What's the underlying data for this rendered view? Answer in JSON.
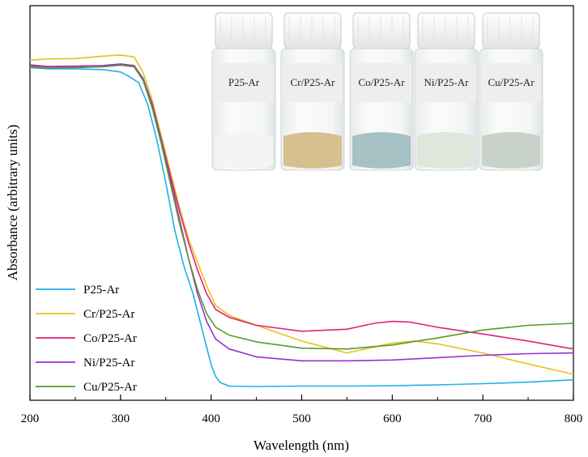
{
  "chart_data": {
    "type": "line",
    "xlabel": "Wavelength (nm)",
    "ylabel": "Absorbance (arbitrary units)",
    "xlim": [
      200,
      800
    ],
    "ylim": [
      0,
      1
    ],
    "xticks": [
      200,
      300,
      400,
      500,
      600,
      700,
      800
    ],
    "xtick_labels": [
      "200",
      "300",
      "400",
      "500",
      "600",
      "700",
      "800"
    ],
    "y_tick_labels_shown": false,
    "grid": false,
    "legend_position": "bottom-left",
    "series": [
      {
        "name": "P25-Ar",
        "color": "#1fb1e6",
        "x": [
          200,
          220,
          250,
          280,
          300,
          310,
          320,
          330,
          340,
          350,
          360,
          370,
          380,
          390,
          400,
          405,
          410,
          420,
          450,
          500,
          550,
          600,
          650,
          700,
          750,
          800
        ],
        "y": [
          0.843,
          0.84,
          0.84,
          0.838,
          0.832,
          0.82,
          0.805,
          0.75,
          0.66,
          0.55,
          0.43,
          0.34,
          0.27,
          0.18,
          0.09,
          0.06,
          0.045,
          0.036,
          0.035,
          0.036,
          0.036,
          0.037,
          0.039,
          0.042,
          0.046,
          0.052
        ]
      },
      {
        "name": "Cr/P25-Ar",
        "color": "#e6c21c",
        "x": [
          200,
          220,
          250,
          280,
          300,
          315,
          325,
          335,
          345,
          355,
          365,
          375,
          385,
          395,
          405,
          420,
          450,
          500,
          550,
          600,
          625,
          650,
          700,
          750,
          800
        ],
        "y": [
          0.862,
          0.865,
          0.866,
          0.872,
          0.875,
          0.87,
          0.83,
          0.76,
          0.67,
          0.58,
          0.49,
          0.41,
          0.35,
          0.29,
          0.24,
          0.215,
          0.19,
          0.15,
          0.12,
          0.145,
          0.15,
          0.143,
          0.12,
          0.092,
          0.066
        ]
      },
      {
        "name": "Co/P25-Ar",
        "color": "#e2217f",
        "x": [
          200,
          220,
          250,
          280,
          300,
          315,
          325,
          335,
          345,
          355,
          365,
          375,
          385,
          395,
          405,
          420,
          450,
          500,
          550,
          580,
          600,
          620,
          650,
          700,
          750,
          800
        ],
        "y": [
          0.85,
          0.846,
          0.847,
          0.848,
          0.852,
          0.848,
          0.815,
          0.75,
          0.66,
          0.57,
          0.48,
          0.4,
          0.33,
          0.27,
          0.23,
          0.21,
          0.19,
          0.175,
          0.18,
          0.195,
          0.2,
          0.198,
          0.185,
          0.168,
          0.15,
          0.13
        ]
      },
      {
        "name": "Ni/P25-Ar",
        "color": "#9b2fd0",
        "x": [
          200,
          220,
          250,
          280,
          300,
          315,
          325,
          335,
          345,
          355,
          365,
          375,
          385,
          395,
          405,
          420,
          450,
          500,
          550,
          600,
          650,
          700,
          750,
          800
        ],
        "y": [
          0.848,
          0.845,
          0.846,
          0.848,
          0.852,
          0.848,
          0.815,
          0.75,
          0.66,
          0.56,
          0.46,
          0.36,
          0.27,
          0.2,
          0.155,
          0.13,
          0.11,
          0.1,
          0.1,
          0.102,
          0.108,
          0.114,
          0.118,
          0.12
        ]
      },
      {
        "name": "Cu/P25-Ar",
        "color": "#5a9a26",
        "x": [
          200,
          220,
          250,
          280,
          300,
          315,
          325,
          335,
          345,
          355,
          365,
          375,
          385,
          395,
          405,
          420,
          450,
          500,
          550,
          600,
          650,
          700,
          750,
          800
        ],
        "y": [
          0.845,
          0.842,
          0.843,
          0.845,
          0.849,
          0.845,
          0.81,
          0.74,
          0.65,
          0.55,
          0.45,
          0.36,
          0.28,
          0.22,
          0.185,
          0.165,
          0.148,
          0.132,
          0.13,
          0.14,
          0.158,
          0.178,
          0.19,
          0.195
        ]
      }
    ]
  },
  "inset_photo": {
    "vials": [
      {
        "label": "P25-Ar",
        "powder_color": "#f4f4f2"
      },
      {
        "label": "Cr/P25-Ar",
        "powder_color": "#d5c08e"
      },
      {
        "label": "Co/P25-Ar",
        "powder_color": "#a7c0c4"
      },
      {
        "label": "Ni/P25-Ar",
        "powder_color": "#dfe6dc"
      },
      {
        "label": "Cu/P25-Ar",
        "powder_color": "#c8d2c8"
      }
    ]
  }
}
